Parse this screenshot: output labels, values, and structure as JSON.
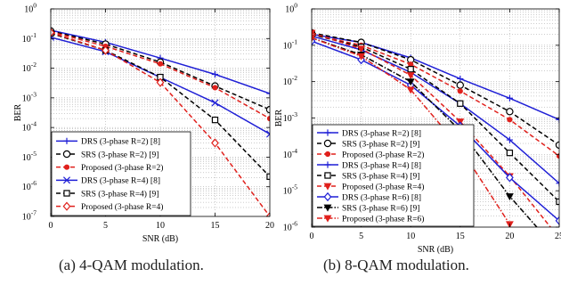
{
  "chart_data": [
    {
      "type": "line",
      "caption": "(a) 4-QAM modulation.",
      "xlabel": "SNR (dB)",
      "ylabel": "BER",
      "xlim": [
        0,
        20
      ],
      "ylim": [
        1e-07,
        1
      ],
      "yscale": "log",
      "grid": true,
      "x_ticks": [
        0,
        5,
        10,
        15,
        20
      ],
      "y_tick_labels": [
        [
          "10",
          "0"
        ],
        [
          "10",
          "-1"
        ],
        [
          "10",
          "-2"
        ],
        [
          "10",
          "-3"
        ],
        [
          "10",
          "-4"
        ],
        [
          "10",
          "-5"
        ],
        [
          "10",
          "-6"
        ],
        [
          "10",
          "-7"
        ]
      ],
      "legend_position": "bottom-left",
      "series": [
        {
          "name": "DRS (3-phase R=2) [8]",
          "color": "#1f1fd6",
          "dash": "solid",
          "marker": "plus",
          "x": [
            0,
            5,
            10,
            15,
            20
          ],
          "y": [
            0.19,
            0.075,
            0.022,
            0.0062,
            0.0014
          ]
        },
        {
          "name": "SRS (3-phase R=2) [9]",
          "color": "#000000",
          "dash": "dash",
          "marker": "circle",
          "x": [
            0,
            5,
            10,
            15,
            20
          ],
          "y": [
            0.18,
            0.065,
            0.016,
            0.0025,
            0.0004
          ]
        },
        {
          "name": "Proposed (3-phase R=2)",
          "color": "#e0201c",
          "dash": "dash",
          "marker": "dot",
          "x": [
            0,
            5,
            10,
            15,
            20
          ],
          "y": [
            0.17,
            0.055,
            0.014,
            0.0022,
            0.0002
          ]
        },
        {
          "name": "DRS (3-phase R=4) [8]",
          "color": "#1f1fd6",
          "dash": "solid",
          "marker": "x",
          "x": [
            0,
            5,
            10,
            15,
            20
          ],
          "y": [
            0.11,
            0.036,
            0.0049,
            0.00068,
            6e-05
          ]
        },
        {
          "name": "SRS (3-phase R=4) [9]",
          "color": "#000000",
          "dash": "dash",
          "marker": "square",
          "x": [
            0,
            5,
            10,
            15,
            20
          ],
          "y": [
            0.15,
            0.04,
            0.005,
            0.00018,
            2.2e-06
          ]
        },
        {
          "name": "Proposed (3-phase R=4)",
          "color": "#e0201c",
          "dash": "dash",
          "marker": "diamond",
          "x": [
            0,
            5,
            10,
            15,
            20
          ],
          "y": [
            0.16,
            0.04,
            0.0033,
            3e-05,
            1e-07
          ]
        }
      ]
    },
    {
      "type": "line",
      "caption": "(b) 8-QAM modulation.",
      "xlabel": "SNR (dB)",
      "ylabel": "BER",
      "xlim": [
        0,
        25
      ],
      "ylim": [
        1e-06,
        1
      ],
      "yscale": "log",
      "grid": true,
      "x_ticks": [
        0,
        5,
        10,
        15,
        20,
        25
      ],
      "y_tick_labels": [
        [
          "10",
          "0"
        ],
        [
          "10",
          "-1"
        ],
        [
          "10",
          "-2"
        ],
        [
          "10",
          "-3"
        ],
        [
          "10",
          "-4"
        ],
        [
          "10",
          "-5"
        ],
        [
          "10",
          "-6"
        ]
      ],
      "legend_position": "bottom-left",
      "series": [
        {
          "name": "DRS (3-phase R=2) [8]",
          "color": "#1f1fd6",
          "dash": "solid",
          "marker": "plus",
          "x": [
            0,
            5,
            10,
            15,
            20,
            25
          ],
          "y": [
            0.2,
            0.12,
            0.045,
            0.012,
            0.0035,
            0.0009
          ]
        },
        {
          "name": "SRS (3-phase R=2) [9]",
          "color": "#000000",
          "dash": "dash",
          "marker": "circle",
          "x": [
            0,
            5,
            10,
            15,
            20,
            25
          ],
          "y": [
            0.22,
            0.12,
            0.04,
            0.008,
            0.0015,
            0.00018
          ]
        },
        {
          "name": "Proposed (3-phase R=2)",
          "color": "#e0201c",
          "dash": "dash",
          "marker": "dot",
          "x": [
            0,
            5,
            10,
            15,
            20,
            25
          ],
          "y": [
            0.2,
            0.1,
            0.03,
            0.0055,
            0.0009,
            9e-05
          ]
        },
        {
          "name": "DRS (3-phase R=4) [8]",
          "color": "#1f1fd6",
          "dash": "solid",
          "marker": "plus",
          "x": [
            0,
            5,
            10,
            15,
            20,
            25
          ],
          "y": [
            0.18,
            0.075,
            0.018,
            0.0025,
            0.00025,
            1.6e-05
          ]
        },
        {
          "name": "SRS (3-phase R=4) [9]",
          "color": "#000000",
          "dash": "dash",
          "marker": "square",
          "x": [
            0,
            5,
            10,
            15,
            20,
            25
          ],
          "y": [
            0.2,
            0.09,
            0.022,
            0.0025,
            0.00011,
            5e-06
          ]
        },
        {
          "name": "Proposed (3-phase R=4)",
          "color": "#e0201c",
          "dash": "dash",
          "marker": "triangle-down",
          "x": [
            0,
            5,
            10,
            15,
            20,
            25
          ],
          "y": [
            0.22,
            0.08,
            0.015,
            0.0008,
            2.5e-05,
            5e-07
          ]
        },
        {
          "name": "DRS (3-phase R=6) [8]",
          "color": "#1f1fd6",
          "dash": "solid",
          "marker": "diamond",
          "x": [
            0,
            5,
            10,
            15,
            20,
            25
          ],
          "y": [
            0.13,
            0.04,
            0.008,
            0.0006,
            2.3e-05,
            1.5e-06
          ]
        },
        {
          "name": "SRS (3-phase R=6) [9]",
          "color": "#000000",
          "dash": "dashdot",
          "marker": "triangle-down",
          "x": [
            0,
            5,
            10,
            15,
            20,
            25
          ],
          "y": [
            0.16,
            0.055,
            0.01,
            0.00045,
            7e-06,
            2e-07
          ]
        },
        {
          "name": "Proposed (3-phase R=6)",
          "color": "#e0201c",
          "dash": "dashdot",
          "marker": "triangle-down",
          "x": [
            0,
            5,
            10,
            15,
            20,
            25
          ],
          "y": [
            0.16,
            0.05,
            0.006,
            0.00015,
            1.2e-06,
            2e-08
          ]
        }
      ]
    }
  ]
}
